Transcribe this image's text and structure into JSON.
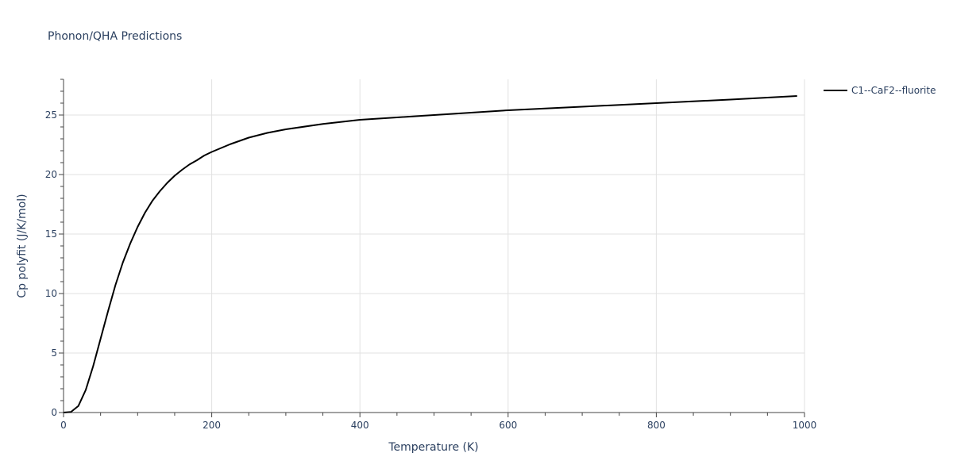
{
  "chart_data": {
    "type": "line",
    "title": "Phonon/QHA Predictions",
    "xlabel": "Temperature (K)",
    "ylabel": "Cp polyfit (J/K/mol)",
    "xlim": [
      0,
      1000
    ],
    "ylim": [
      0,
      28
    ],
    "xticks": [
      0,
      200,
      400,
      600,
      800,
      1000
    ],
    "xtick_labels": [
      "0",
      "200",
      "400",
      "600",
      "800",
      "1000"
    ],
    "yticks": [
      0,
      5,
      10,
      15,
      20,
      25
    ],
    "ytick_labels": [
      "0",
      "5",
      "10",
      "15",
      "20",
      "25"
    ],
    "grid": true,
    "legend_position": "top-right",
    "series": [
      {
        "name": "C1--CaF2--fluorite",
        "color": "#000000",
        "x": [
          0,
          10,
          20,
          30,
          40,
          50,
          60,
          70,
          80,
          90,
          100,
          110,
          120,
          130,
          140,
          150,
          160,
          170,
          180,
          190,
          200,
          225,
          250,
          275,
          300,
          350,
          400,
          450,
          500,
          600,
          700,
          800,
          900,
          990
        ],
        "y": [
          0,
          0.05,
          0.55,
          1.9,
          3.9,
          6.2,
          8.5,
          10.7,
          12.6,
          14.2,
          15.6,
          16.8,
          17.8,
          18.6,
          19.3,
          19.9,
          20.4,
          20.85,
          21.2,
          21.6,
          21.9,
          22.55,
          23.1,
          23.5,
          23.8,
          24.25,
          24.6,
          24.8,
          25.0,
          25.4,
          25.7,
          26.0,
          26.3,
          26.6
        ]
      }
    ]
  }
}
